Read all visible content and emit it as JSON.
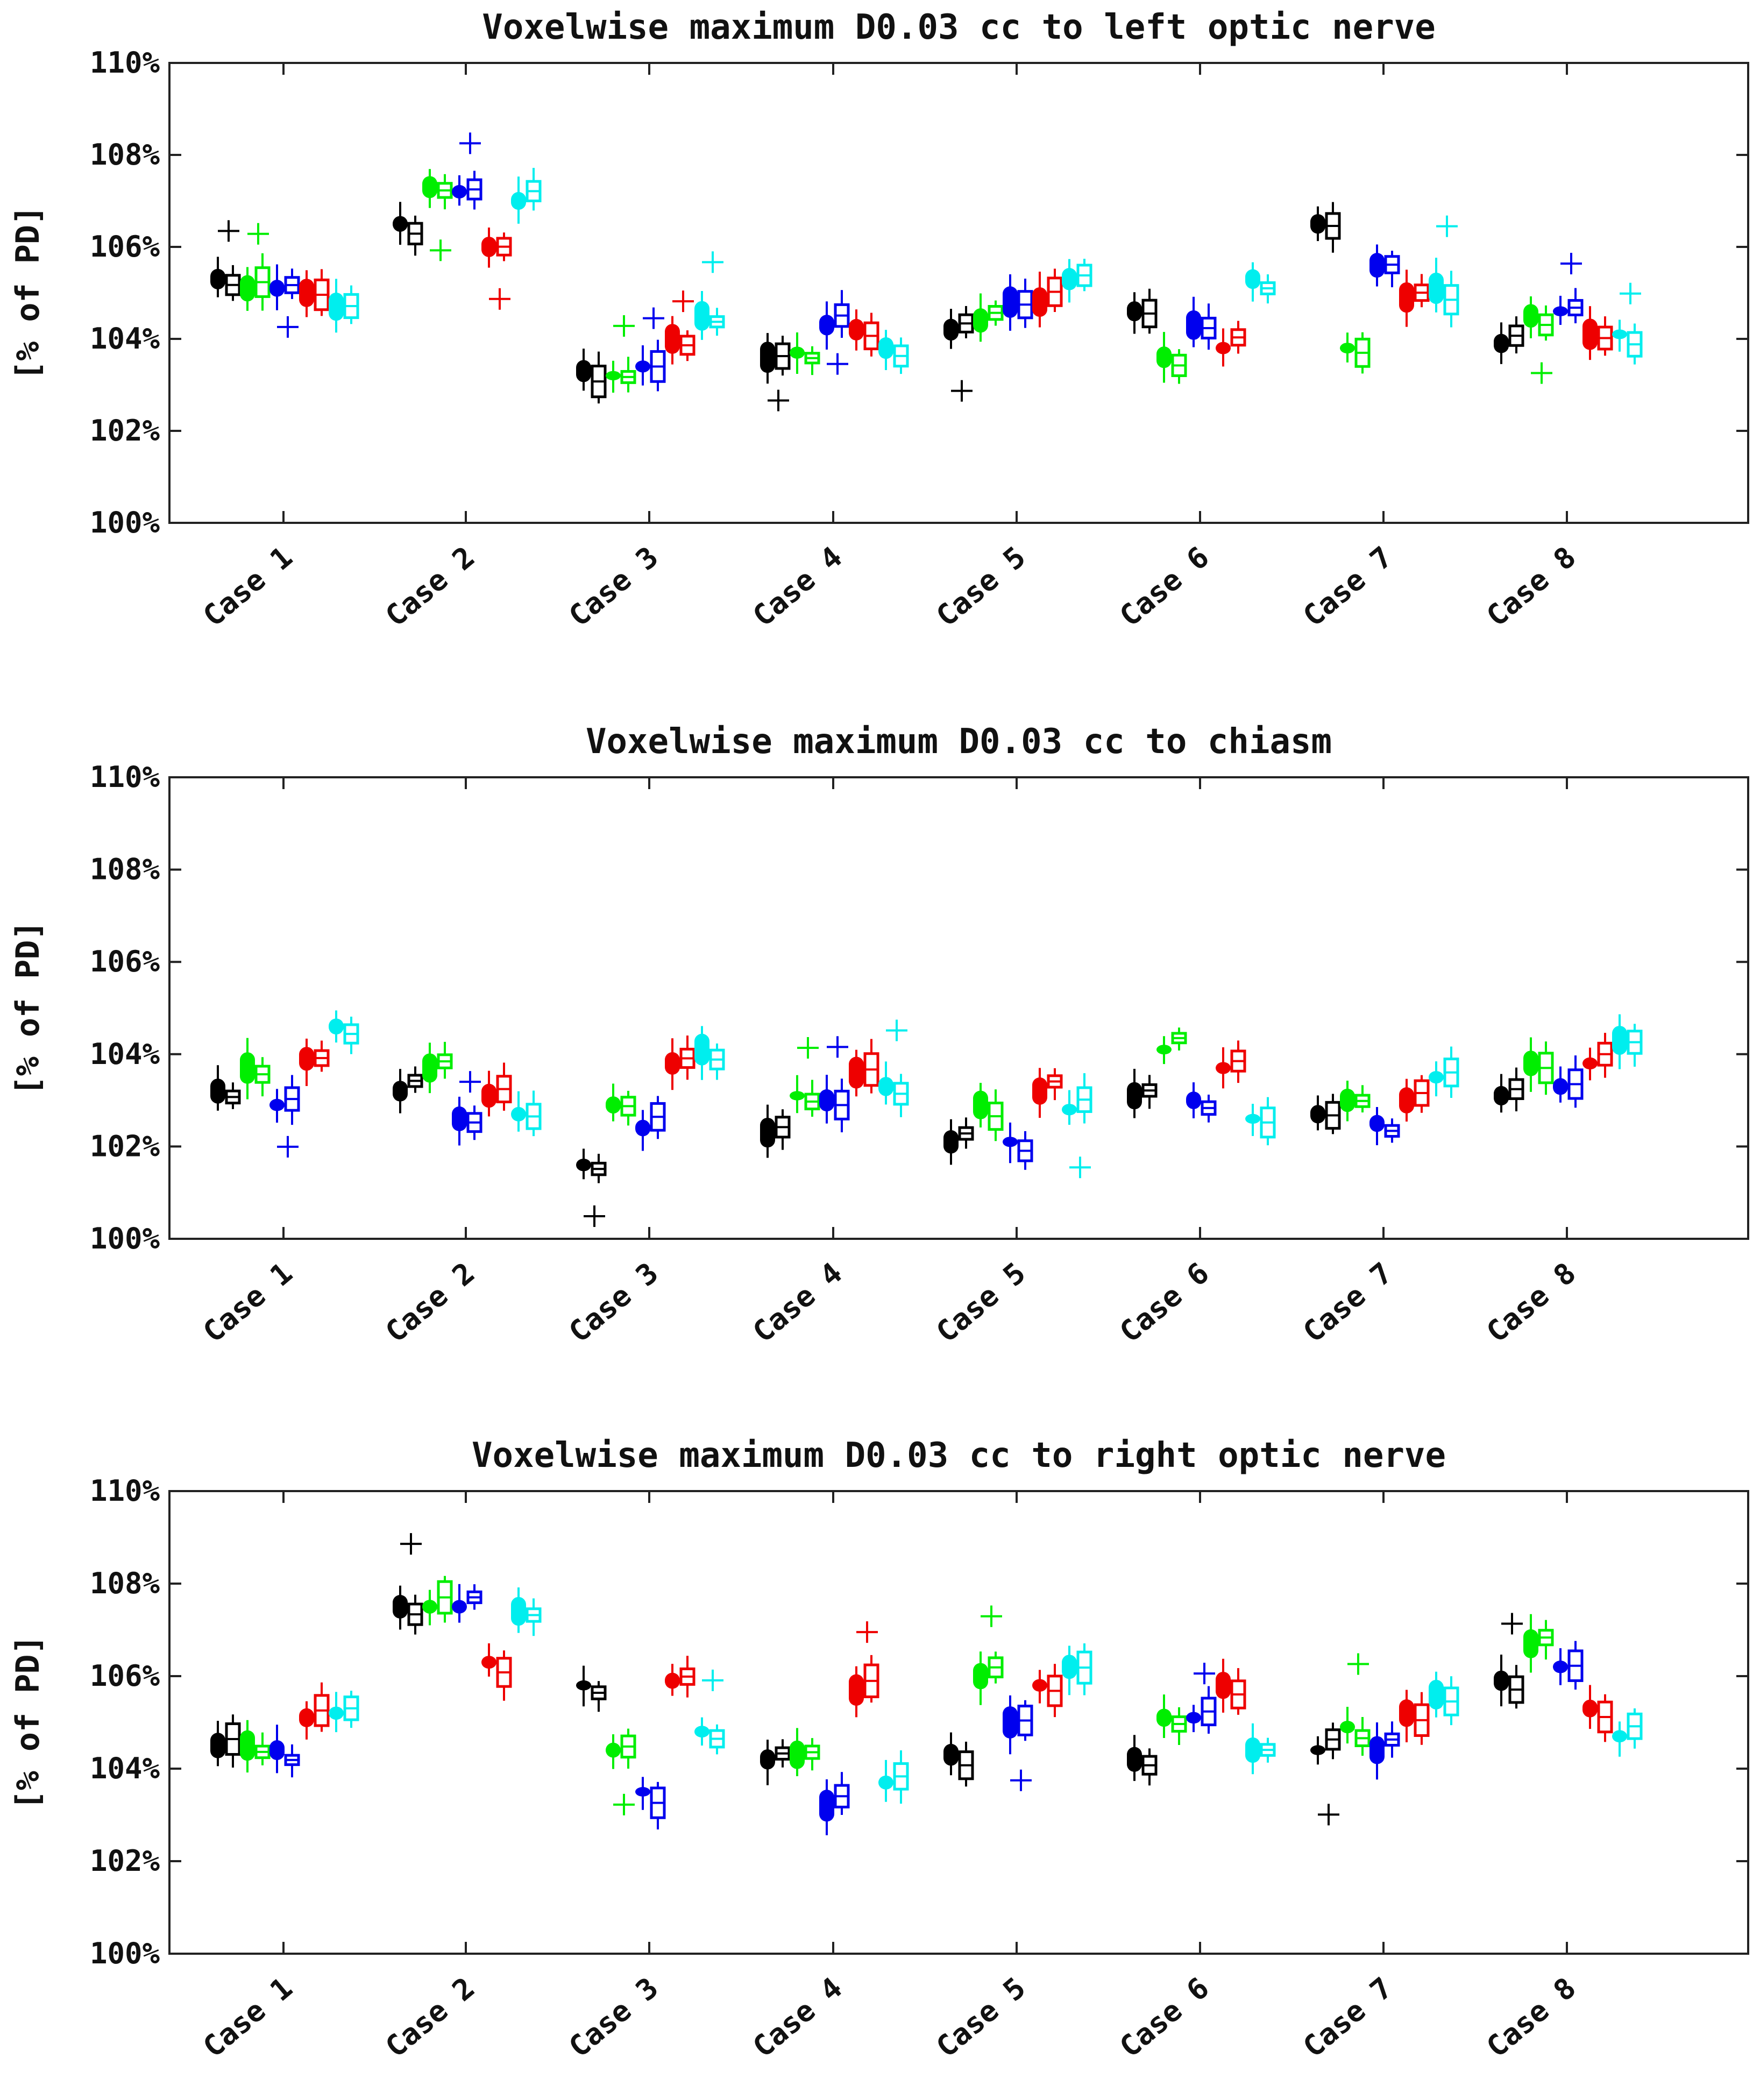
{
  "chart_data": [
    {
      "type": "boxplot",
      "title": "Voxelwise maximum D0.03 cc to left optic nerve",
      "ylabel": "[% of PD]",
      "yticks": [
        "100%",
        "102%",
        "104%",
        "106%",
        "108%",
        "110%"
      ],
      "ylim": [
        100,
        110
      ],
      "categories": [
        "Case 1",
        "Case 2",
        "Case 3",
        "Case 4",
        "Case 5",
        "Case 6",
        "Case 7",
        "Case 8"
      ],
      "series_colors": [
        "#000000",
        "#00ee00",
        "#0000ee",
        "#ee0000",
        "#00eeee"
      ],
      "series_medians": [
        [
          105.3,
          106.5,
          103.3,
          103.6,
          104.2,
          104.6,
          106.5,
          103.9
        ],
        [
          105.1,
          107.3,
          103.2,
          103.7,
          104.4,
          103.6,
          103.8,
          104.5
        ],
        [
          105.1,
          107.2,
          103.4,
          104.3,
          104.8,
          104.3,
          105.6,
          104.6
        ],
        [
          105.0,
          106.0,
          104.0,
          104.2,
          104.8,
          103.8,
          104.9,
          104.1
        ],
        [
          104.7,
          107.0,
          104.5,
          103.8,
          105.3,
          105.3,
          105.1,
          104.1
        ]
      ]
    },
    {
      "type": "boxplot",
      "title": "Voxelwise maximum D0.03 cc to chiasm",
      "ylabel": "[% of PD]",
      "yticks": [
        "100%",
        "102%",
        "104%",
        "106%",
        "108%",
        "110%"
      ],
      "ylim": [
        100,
        110
      ],
      "categories": [
        "Case 1",
        "Case 2",
        "Case 3",
        "Case 4",
        "Case 5",
        "Case 6",
        "Case 7",
        "Case 8"
      ],
      "series_colors": [
        "#000000",
        "#00ee00",
        "#0000ee",
        "#ee0000",
        "#00eeee"
      ],
      "series_medians": [
        [
          103.2,
          103.2,
          101.6,
          102.3,
          102.1,
          103.1,
          102.7,
          103.1
        ],
        [
          103.7,
          103.7,
          102.9,
          103.1,
          102.9,
          104.1,
          103.0,
          103.8
        ],
        [
          102.9,
          102.6,
          102.4,
          103.0,
          102.1,
          103.0,
          102.5,
          103.3
        ],
        [
          103.9,
          103.1,
          103.8,
          103.6,
          103.2,
          103.7,
          103.0,
          103.8
        ],
        [
          104.6,
          102.7,
          104.1,
          103.3,
          102.8,
          102.6,
          103.5,
          104.3
        ]
      ]
    },
    {
      "type": "boxplot",
      "title": "Voxelwise maximum D0.03 cc to right optic nerve",
      "ylabel": "[% of PD]",
      "yticks": [
        "100%",
        "102%",
        "104%",
        "106%",
        "108%",
        "110%"
      ],
      "ylim": [
        100,
        110
      ],
      "categories": [
        "Case 1",
        "Case 2",
        "Case 3",
        "Case 4",
        "Case 5",
        "Case 6",
        "Case 7",
        "Case 8"
      ],
      "series_colors": [
        "#000000",
        "#00ee00",
        "#0000ee",
        "#ee0000",
        "#00eeee"
      ],
      "series_medians": [
        [
          104.5,
          107.5,
          105.8,
          104.2,
          104.3,
          104.2,
          104.4,
          105.9
        ],
        [
          104.5,
          107.5,
          104.4,
          104.3,
          106.0,
          105.1,
          104.9,
          106.7
        ],
        [
          104.4,
          107.5,
          103.5,
          103.2,
          105.0,
          105.1,
          104.4,
          106.2
        ],
        [
          105.1,
          106.3,
          105.9,
          105.7,
          105.8,
          105.8,
          105.2,
          105.3
        ],
        [
          105.2,
          107.4,
          104.8,
          103.7,
          106.2,
          104.4,
          105.6,
          104.7
        ]
      ]
    }
  ]
}
